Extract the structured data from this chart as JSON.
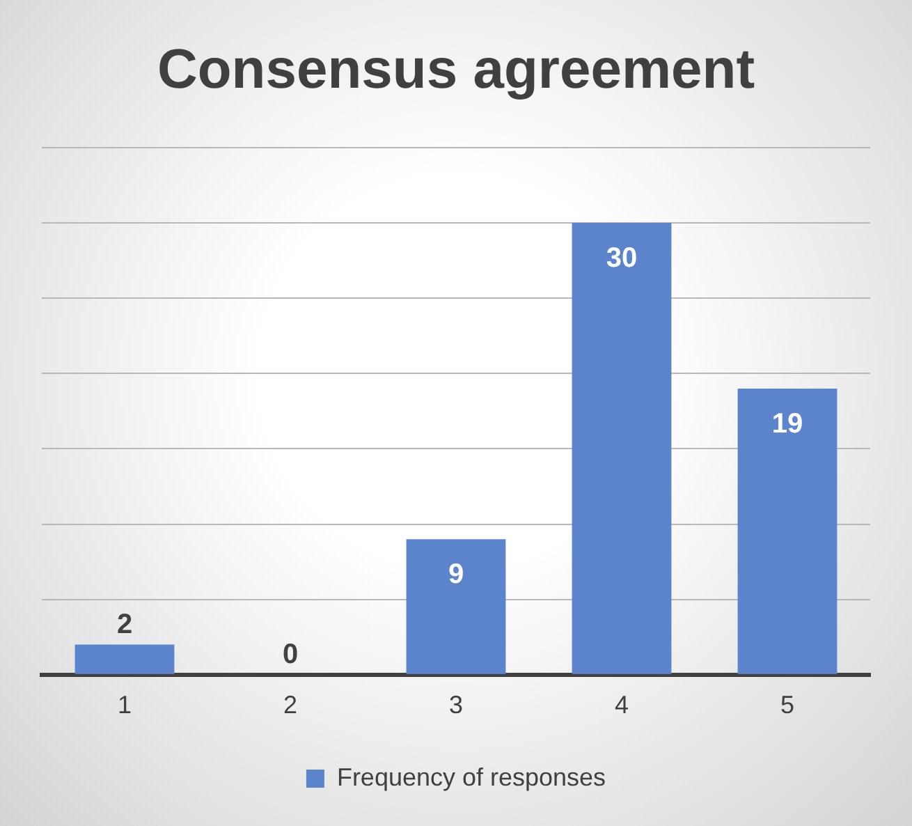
{
  "chart_data": {
    "type": "bar",
    "title": "Consensus agreement",
    "categories": [
      "1",
      "2",
      "3",
      "4",
      "5"
    ],
    "series": [
      {
        "name": "Frequency of responses",
        "color": "#5b84cc",
        "values": [
          2,
          0,
          9,
          30,
          19
        ]
      }
    ],
    "ylim": [
      0,
      35
    ],
    "yticks": [
      {
        "value": 0,
        "label": null
      },
      {
        "value": 5,
        "label": null
      },
      {
        "value": 10,
        "label": null
      },
      {
        "value": 15,
        "label": null
      },
      {
        "value": 20,
        "label": null
      },
      {
        "value": 25,
        "label": null
      },
      {
        "value": 30,
        "label": null
      },
      {
        "value": 35,
        "label": null
      }
    ],
    "tick_labels": "x",
    "grid": "y",
    "legend": "bottom",
    "data_labels": true
  }
}
